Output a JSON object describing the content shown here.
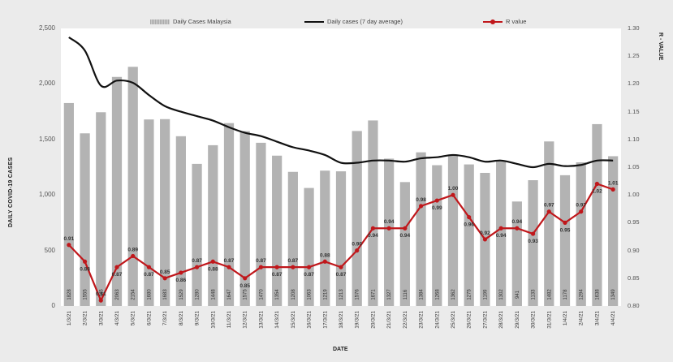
{
  "chart_data": {
    "type": "bar",
    "title": "",
    "xlabel": "DATE",
    "ylabel": "DAILY COVID-19 CASES",
    "y2label": "R - VALUE",
    "ylim": [
      0,
      2500
    ],
    "y2lim": [
      0.8,
      1.3
    ],
    "grid": false,
    "legend_position": "top",
    "y_ticks": [
      "0",
      "500",
      "1,000",
      "1,500",
      "2,000",
      "2,500"
    ],
    "y2_ticks": [
      "0.80",
      "0.85",
      "0.90",
      "0.95",
      "1.00",
      "1.05",
      "1.10",
      "1.15",
      "1.20",
      "1.25",
      "1.30"
    ],
    "categories": [
      "1/3/21",
      "2/3/21",
      "3/3/21",
      "4/3/21",
      "5/3/21",
      "6/3/21",
      "7/3/21",
      "8/3/21",
      "9/3/21",
      "10/3/21",
      "11/3/21",
      "12/3/21",
      "13/3/21",
      "14/3/21",
      "15/3/21",
      "16/3/21",
      "17/3/21",
      "18/3/21",
      "19/3/21",
      "20/3/21",
      "21/3/21",
      "22/3/21",
      "23/3/21",
      "24/3/21",
      "25/3/21",
      "26/3/21",
      "27/3/21",
      "28/3/21",
      "29/3/21",
      "30/3/21",
      "31/3/21",
      "1/4/21",
      "2/4/21",
      "3/4/21",
      "4/4/21"
    ],
    "series": [
      {
        "name": "Daily Cases Malaysia",
        "type": "bar",
        "axis": "left",
        "color": "#b3b3b3",
        "values": [
          1828,
          1555,
          1745,
          2063,
          2154,
          1680,
          1683,
          1529,
          1280,
          1448,
          1647,
          1575,
          1470,
          1354,
          1208,
          1063,
          1219,
          1213,
          1576,
          1671,
          1327,
          1116,
          1384,
          1268,
          1362,
          1275,
          1199,
          1302,
          941,
          1133,
          1482,
          1178,
          1294,
          1638,
          1349
        ]
      },
      {
        "name": "Daily cases (7 day average)",
        "type": "line",
        "axis": "left",
        "color": "#111111",
        "values": [
          2420,
          2300,
          1985,
          2030,
          2010,
          1900,
          1800,
          1750,
          1710,
          1670,
          1610,
          1560,
          1530,
          1480,
          1430,
          1400,
          1360,
          1290,
          1290,
          1310,
          1310,
          1300,
          1330,
          1340,
          1360,
          1340,
          1300,
          1310,
          1280,
          1250,
          1280,
          1260,
          1270,
          1310,
          1310
        ]
      },
      {
        "name": "R value",
        "type": "line",
        "axis": "right",
        "color": "#c0171b",
        "values": [
          0.91,
          0.88,
          0.81,
          0.87,
          0.89,
          0.87,
          0.85,
          0.86,
          0.87,
          0.88,
          0.87,
          0.85,
          0.87,
          0.87,
          0.87,
          0.87,
          0.88,
          0.87,
          0.9,
          0.94,
          0.94,
          0.94,
          0.98,
          0.99,
          1.0,
          0.96,
          0.92,
          0.94,
          0.94,
          0.93,
          0.97,
          0.95,
          0.97,
          1.02,
          1.01
        ]
      }
    ]
  },
  "legend": {
    "bars": "Daily Cases Malaysia",
    "avg": "Daily cases (7 day average)",
    "r": "R value"
  },
  "axes": {
    "left_title": "DAILY COVID-19 CASES",
    "right_title": "R - VALUE",
    "x_title": "DATE"
  }
}
